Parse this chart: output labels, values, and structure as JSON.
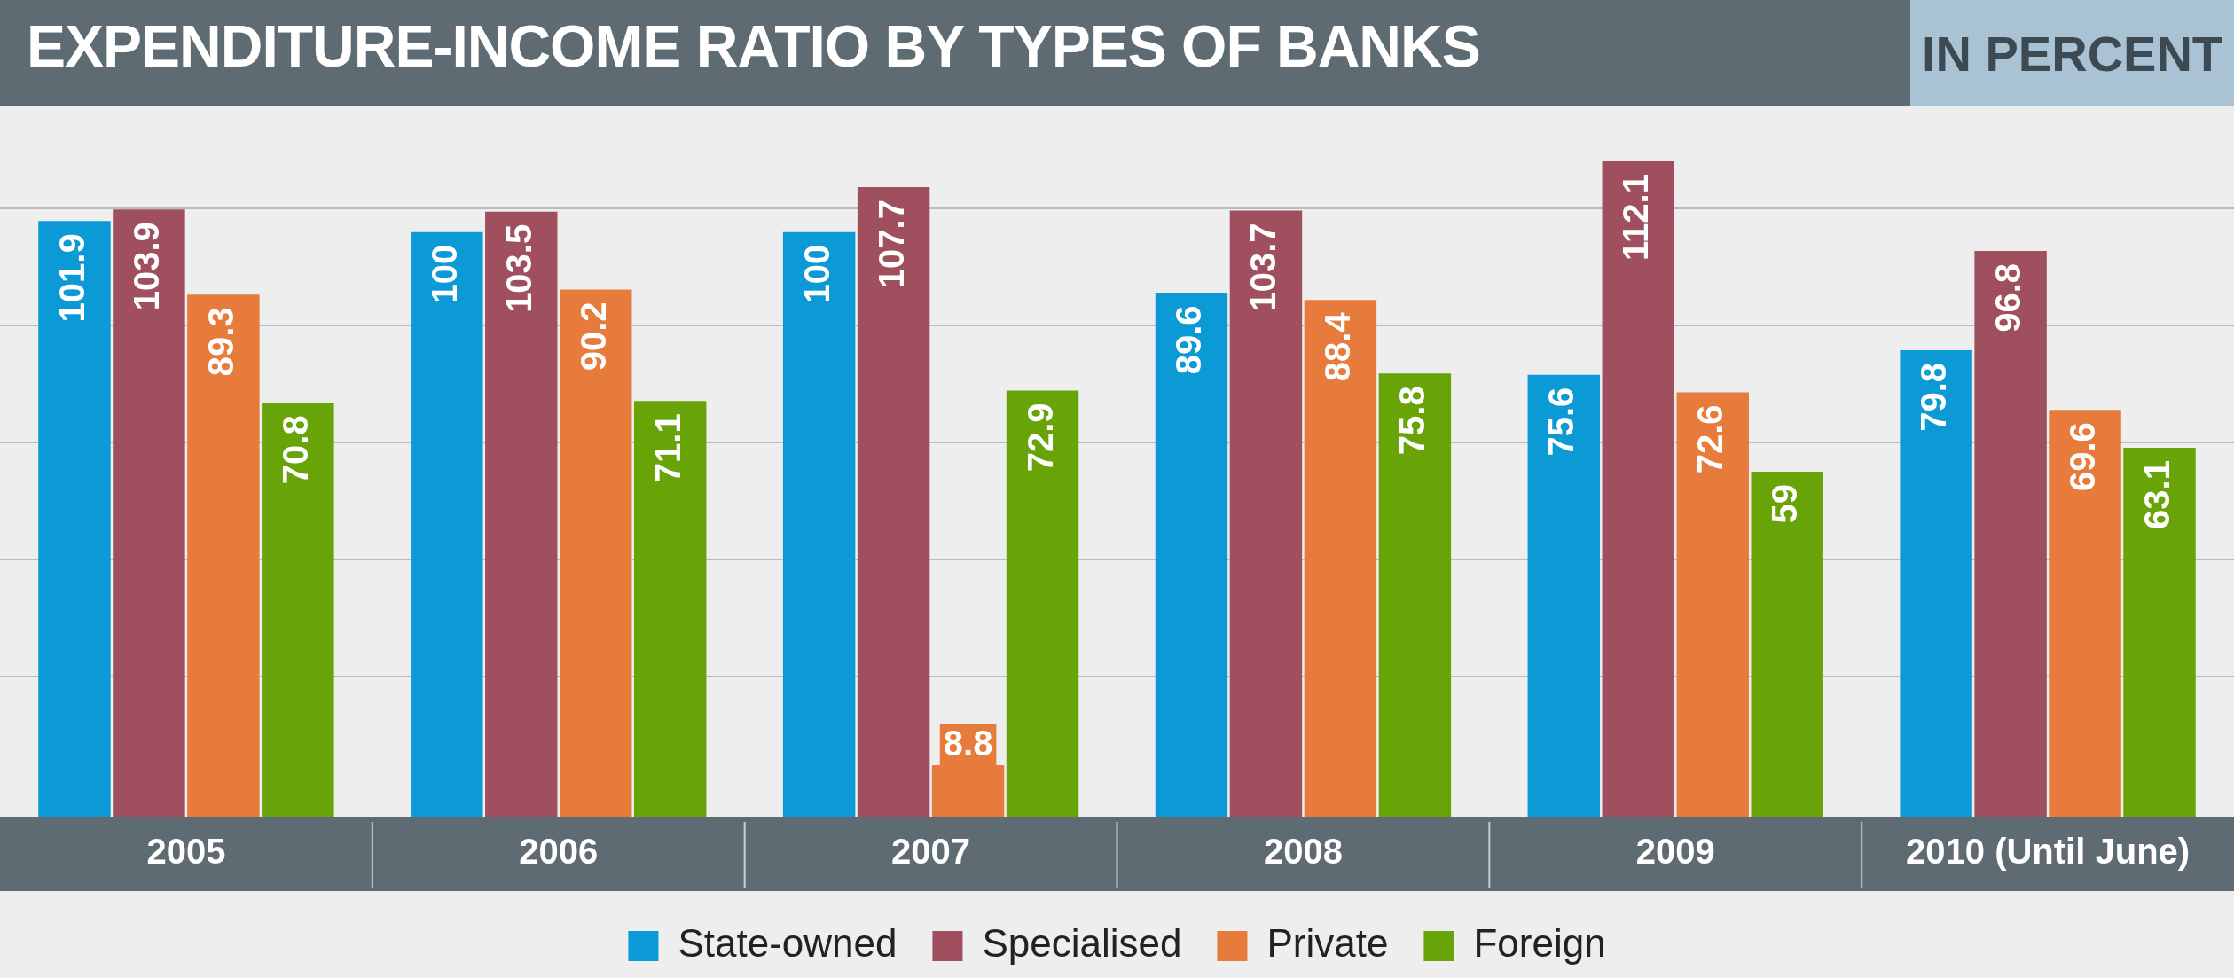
{
  "chart_data": {
    "type": "bar",
    "title": "EXPENDITURE-INCOME RATIO BY TYPES OF BANKS",
    "subtitle": "IN PERCENT",
    "categories": [
      "2005",
      "2006",
      "2007",
      "2008",
      "2009",
      "2010 (Until June)"
    ],
    "series": [
      {
        "name": "State-owned",
        "color": "#0b9ad6",
        "values": [
          101.9,
          100,
          100,
          89.6,
          75.6,
          79.8
        ]
      },
      {
        "name": "Specialised",
        "color": "#a04f5e",
        "values": [
          103.9,
          103.5,
          107.7,
          103.7,
          112.1,
          96.8
        ]
      },
      {
        "name": "Private",
        "color": "#e67b3b",
        "values": [
          89.3,
          90.2,
          8.8,
          88.4,
          72.6,
          69.6
        ]
      },
      {
        "name": "Foreign",
        "color": "#68a307",
        "values": [
          70.8,
          71.1,
          72.9,
          75.8,
          59,
          63.1
        ]
      }
    ],
    "yticks": [
      {
        "value": 24,
        "label": null
      },
      {
        "value": 44,
        "label": null
      },
      {
        "value": 64,
        "label": null
      },
      {
        "value": 84,
        "label": null
      },
      {
        "value": 104,
        "label": null
      }
    ],
    "tick_labels": "x",
    "grid": "y",
    "data_labels": true,
    "legend": "bottom"
  }
}
